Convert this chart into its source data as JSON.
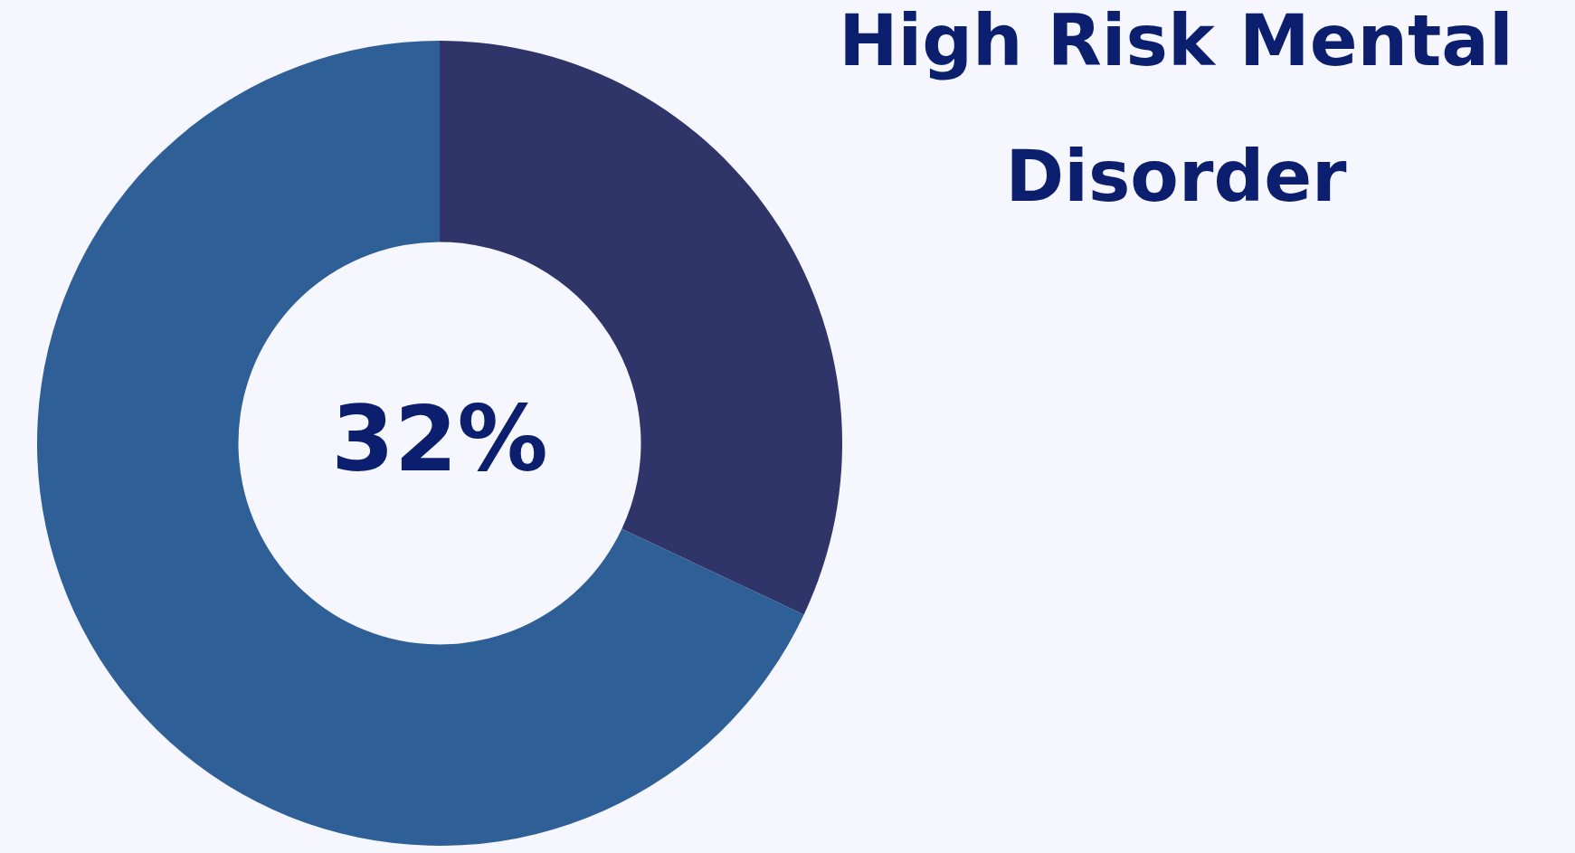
{
  "chart_data": {
    "type": "donut",
    "title": "High Risk Mental Disorder",
    "categories": [
      null,
      null
    ],
    "values": [
      32,
      68
    ],
    "colors": [
      "#2f3469",
      "#2e5f96"
    ],
    "annotations": [
      "32%"
    ],
    "legend": false
  }
}
